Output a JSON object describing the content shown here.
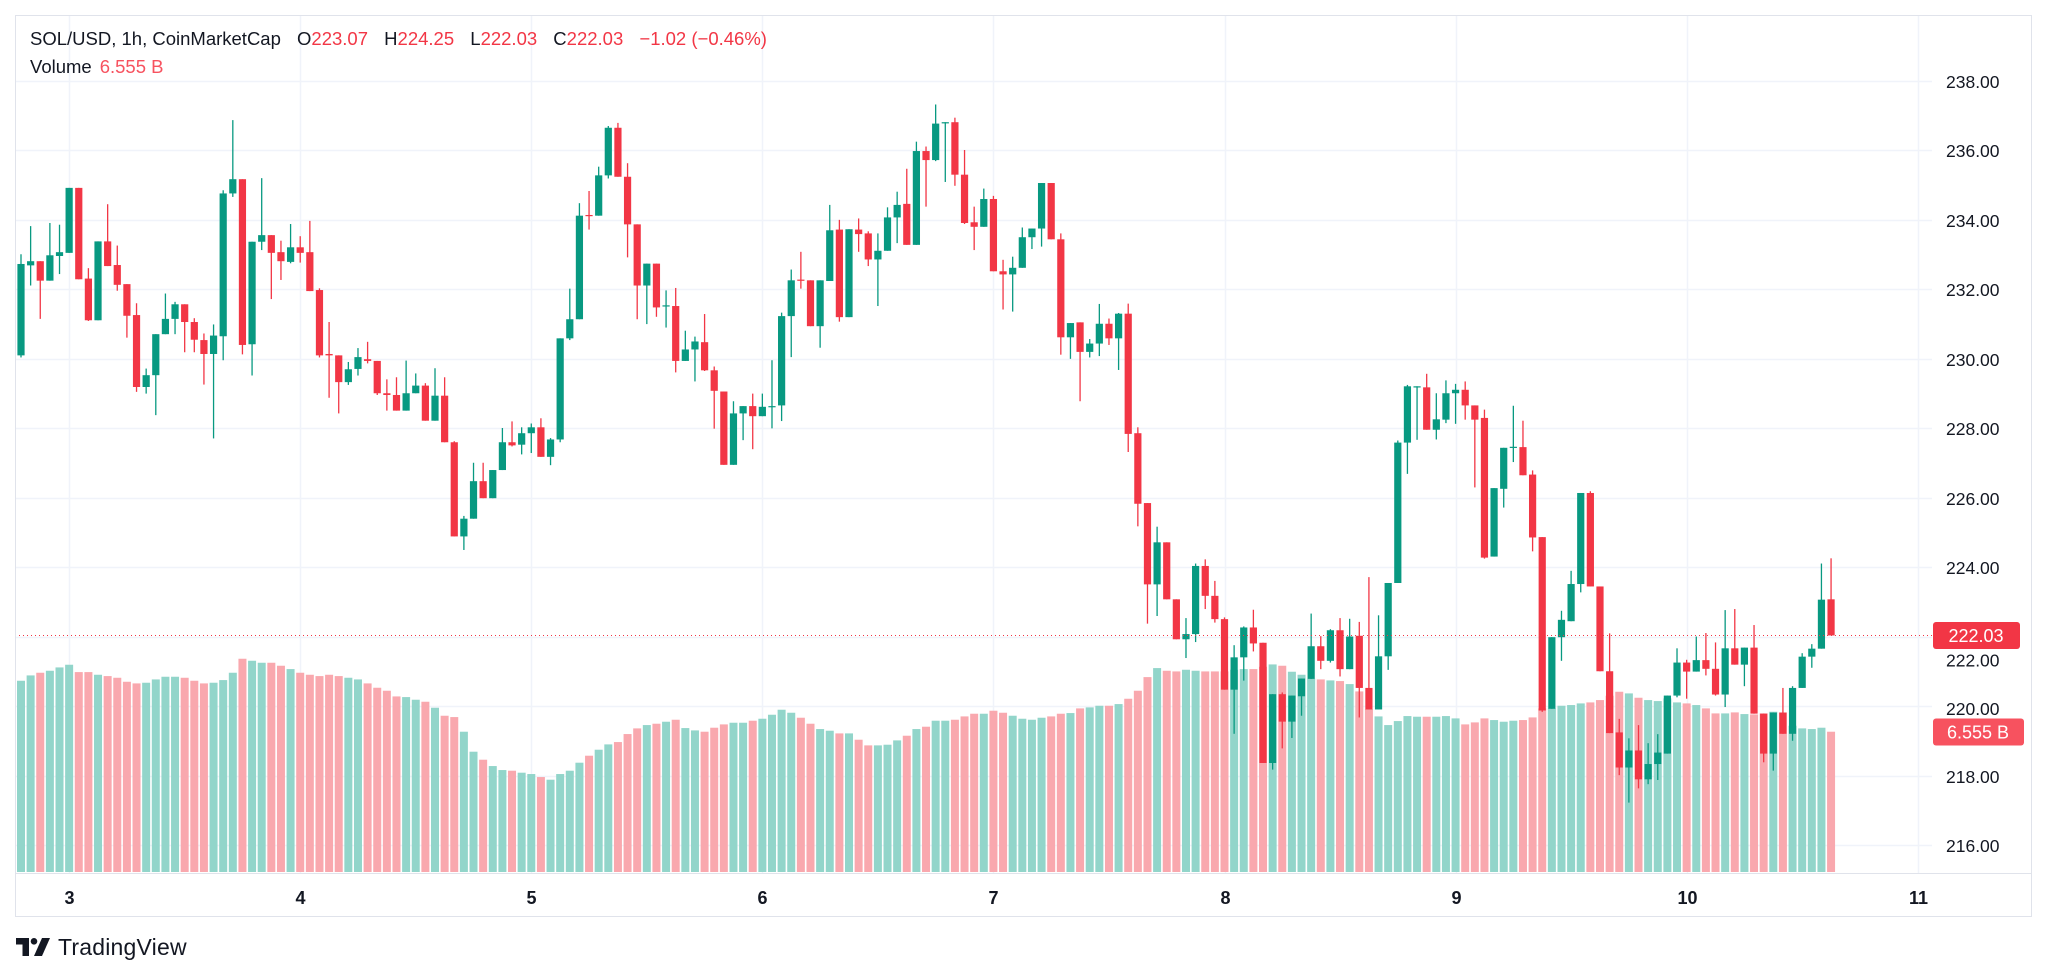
{
  "header": {
    "symbol": "SOL/USD, 1h, CoinMarketCap",
    "ohlc": [
      {
        "k": "O",
        "v": "223.07"
      },
      {
        "k": "H",
        "v": "224.25"
      },
      {
        "k": "L",
        "v": "222.03"
      },
      {
        "k": "C",
        "v": "222.03"
      }
    ],
    "change": "−1.02 (−0.46%)",
    "volume_label": "Volume",
    "volume_value": "6.555 B"
  },
  "price_tag": "222.03",
  "volume_tag": "6.555 B",
  "logo_text": "TradingView",
  "colors": {
    "up": "#089981",
    "down": "#F23645",
    "up_volume": "#92D5CA",
    "down_volume": "#F9A8AE",
    "grid": "#F0F3FA",
    "volume_tag": "#F7525F"
  },
  "chart_data": {
    "type": "candlestick",
    "title": "SOL/USD, 1h, CoinMarketCap",
    "interval": "1h",
    "ylim": [
      215.5,
      238.6
    ],
    "y_ticks": [
      "216.00",
      "218.00",
      "220.00",
      "222.00",
      "224.00",
      "226.00",
      "228.00",
      "230.00",
      "232.00",
      "234.00",
      "236.00",
      "238.00"
    ],
    "x_ticks": [
      {
        "label": "3",
        "index": 5
      },
      {
        "label": "4",
        "index": 29
      },
      {
        "label": "5",
        "index": 53
      },
      {
        "label": "6",
        "index": 77
      },
      {
        "label": "7",
        "index": 101
      },
      {
        "label": "8",
        "index": 125
      },
      {
        "label": "9",
        "index": 149
      },
      {
        "label": "10",
        "index": 173
      },
      {
        "label": "11",
        "index": 197
      }
    ],
    "last_price": 222.03,
    "grid": true,
    "candles_ohlc": [
      [
        230.09,
        233.0,
        230.03,
        232.72
      ],
      [
        232.68,
        233.81,
        232.1,
        232.8
      ],
      [
        232.8,
        232.8,
        231.14,
        232.24
      ],
      [
        232.24,
        233.9,
        232.24,
        232.97
      ],
      [
        232.95,
        233.85,
        232.43,
        233.06
      ],
      [
        233.04,
        234.91,
        233.04,
        234.91
      ],
      [
        234.91,
        234.91,
        232.28,
        232.28
      ],
      [
        232.3,
        232.6,
        231.08,
        231.1
      ],
      [
        231.1,
        233.37,
        231.1,
        233.37
      ],
      [
        233.37,
        234.44,
        232.66,
        232.66
      ],
      [
        232.69,
        233.25,
        231.95,
        232.12
      ],
      [
        232.14,
        232.14,
        230.6,
        231.23
      ],
      [
        231.25,
        231.59,
        229.04,
        229.18
      ],
      [
        229.18,
        229.71,
        228.99,
        229.52
      ],
      [
        229.52,
        230.7,
        228.37,
        230.7
      ],
      [
        230.7,
        231.87,
        230.7,
        231.14
      ],
      [
        231.14,
        231.63,
        230.7,
        231.56
      ],
      [
        231.56,
        231.56,
        230.18,
        231.05
      ],
      [
        231.05,
        231.16,
        230.18,
        230.54
      ],
      [
        230.53,
        230.72,
        229.25,
        230.13
      ],
      [
        230.13,
        230.98,
        227.7,
        230.66
      ],
      [
        230.64,
        234.84,
        229.95,
        234.75
      ],
      [
        234.75,
        236.86,
        234.65,
        235.16
      ],
      [
        235.16,
        235.16,
        230.12,
        230.39
      ],
      [
        230.41,
        233.36,
        229.51,
        233.36
      ],
      [
        233.36,
        235.19,
        233.12,
        233.55
      ],
      [
        233.55,
        233.55,
        231.71,
        233.04
      ],
      [
        233.06,
        233.39,
        232.26,
        232.8
      ],
      [
        232.78,
        233.87,
        232.74,
        233.2
      ],
      [
        233.2,
        233.52,
        232.76,
        233.04
      ],
      [
        233.06,
        233.96,
        231.94,
        231.94
      ],
      [
        231.97,
        232.02,
        230.03,
        230.09
      ],
      [
        230.13,
        231.05,
        228.87,
        230.09
      ],
      [
        230.09,
        230.09,
        228.42,
        229.32
      ],
      [
        229.32,
        229.9,
        229.24,
        229.69
      ],
      [
        229.7,
        230.3,
        229.51,
        230.04
      ],
      [
        229.98,
        230.48,
        229.86,
        229.93
      ],
      [
        229.93,
        229.93,
        228.95,
        229.0
      ],
      [
        229.0,
        229.4,
        228.5,
        228.95
      ],
      [
        228.95,
        229.46,
        228.5,
        228.5
      ],
      [
        228.5,
        229.94,
        228.5,
        229.0
      ],
      [
        229.0,
        229.57,
        229.0,
        229.22
      ],
      [
        229.22,
        229.29,
        228.21,
        228.21
      ],
      [
        228.21,
        229.72,
        228.21,
        228.93
      ],
      [
        228.93,
        229.46,
        227.59,
        227.59
      ],
      [
        227.59,
        227.62,
        224.88,
        224.88
      ],
      [
        224.88,
        225.47,
        224.49,
        225.39
      ],
      [
        225.39,
        227.0,
        225.39,
        226.47
      ],
      [
        226.47,
        227.0,
        225.98,
        225.98
      ],
      [
        225.98,
        226.79,
        225.98,
        226.79
      ],
      [
        226.79,
        228.0,
        226.79,
        227.59
      ],
      [
        227.59,
        228.19,
        227.47,
        227.5
      ],
      [
        227.52,
        228.02,
        227.24,
        227.85
      ],
      [
        227.85,
        228.13,
        227.28,
        228.02
      ],
      [
        228.02,
        228.28,
        227.17,
        227.17
      ],
      [
        227.17,
        227.71,
        226.93,
        227.67
      ],
      [
        227.67,
        230.58,
        227.59,
        230.58
      ],
      [
        230.58,
        232.01,
        230.53,
        231.13
      ],
      [
        231.13,
        234.47,
        231.13,
        234.11
      ],
      [
        234.13,
        234.82,
        233.71,
        234.11
      ],
      [
        234.11,
        235.52,
        234.11,
        235.27
      ],
      [
        235.27,
        236.69,
        235.18,
        236.64
      ],
      [
        236.64,
        236.78,
        235.23,
        235.23
      ],
      [
        235.23,
        235.62,
        232.91,
        233.86
      ],
      [
        233.86,
        233.86,
        231.13,
        232.1
      ],
      [
        232.1,
        232.73,
        230.99,
        232.73
      ],
      [
        232.73,
        232.73,
        231.2,
        231.47
      ],
      [
        231.5,
        231.96,
        230.89,
        231.53
      ],
      [
        231.51,
        232.03,
        229.6,
        229.93
      ],
      [
        229.93,
        230.8,
        229.93,
        230.26
      ],
      [
        230.26,
        230.63,
        229.34,
        230.49
      ],
      [
        230.47,
        231.28,
        229.64,
        229.66
      ],
      [
        229.66,
        229.77,
        227.98,
        229.07
      ],
      [
        229.05,
        229.05,
        226.94,
        226.94
      ],
      [
        226.94,
        228.77,
        226.94,
        228.42
      ],
      [
        228.42,
        228.63,
        227.65,
        228.63
      ],
      [
        228.63,
        228.99,
        227.39,
        228.34
      ],
      [
        228.34,
        228.99,
        228.34,
        228.61
      ],
      [
        228.6,
        229.95,
        227.99,
        228.63
      ],
      [
        228.65,
        231.32,
        228.2,
        231.22
      ],
      [
        231.22,
        232.56,
        230.04,
        232.25
      ],
      [
        232.27,
        233.07,
        232.01,
        232.25
      ],
      [
        232.25,
        232.25,
        230.93,
        230.93
      ],
      [
        230.93,
        232.25,
        230.31,
        232.25
      ],
      [
        232.23,
        234.42,
        232.23,
        233.69
      ],
      [
        233.71,
        233.99,
        231.06,
        231.19
      ],
      [
        231.19,
        233.72,
        231.19,
        233.72
      ],
      [
        233.71,
        234.03,
        233.07,
        233.58
      ],
      [
        233.6,
        233.66,
        232.66,
        232.85
      ],
      [
        232.85,
        233.6,
        231.51,
        233.1
      ],
      [
        233.1,
        234.35,
        233.1,
        234.06
      ],
      [
        234.06,
        234.8,
        233.32,
        234.42
      ],
      [
        234.45,
        235.46,
        233.27,
        233.27
      ],
      [
        233.27,
        236.24,
        233.27,
        235.97
      ],
      [
        235.97,
        236.1,
        234.37,
        235.71
      ],
      [
        235.71,
        237.31,
        235.68,
        236.76
      ],
      [
        236.77,
        236.8,
        235.08,
        236.8
      ],
      [
        236.8,
        236.93,
        234.97,
        235.29
      ],
      [
        235.29,
        236.0,
        233.87,
        233.9
      ],
      [
        233.92,
        234.37,
        233.12,
        233.79
      ],
      [
        233.79,
        234.89,
        233.79,
        234.59
      ],
      [
        234.59,
        234.68,
        232.51,
        232.51
      ],
      [
        232.51,
        232.84,
        231.41,
        232.42
      ],
      [
        232.42,
        232.93,
        231.35,
        232.61
      ],
      [
        232.61,
        233.77,
        232.61,
        233.49
      ],
      [
        233.49,
        233.74,
        233.15,
        233.74
      ],
      [
        233.74,
        235.05,
        233.22,
        235.05
      ],
      [
        235.05,
        235.05,
        233.43,
        233.43
      ],
      [
        233.43,
        233.6,
        230.11,
        230.61
      ],
      [
        230.61,
        231.02,
        229.99,
        231.02
      ],
      [
        231.04,
        231.04,
        228.77,
        230.19
      ],
      [
        230.19,
        230.56,
        230.03,
        230.43
      ],
      [
        230.43,
        231.57,
        230.07,
        231.0
      ],
      [
        231.0,
        231.15,
        230.39,
        230.58
      ],
      [
        230.58,
        231.31,
        229.67,
        231.29
      ],
      [
        231.29,
        231.58,
        227.31,
        227.83
      ],
      [
        227.85,
        228.02,
        225.17,
        225.82
      ],
      [
        225.84,
        225.84,
        222.37,
        223.5
      ],
      [
        223.5,
        225.16,
        222.59,
        224.71
      ],
      [
        224.71,
        224.71,
        223.07,
        223.07
      ],
      [
        223.07,
        223.07,
        221.92,
        221.92
      ],
      [
        221.92,
        222.53,
        221.38,
        222.07
      ],
      [
        222.07,
        224.1,
        221.84,
        224.03
      ],
      [
        224.03,
        224.22,
        222.79,
        223.17
      ],
      [
        223.17,
        223.6,
        222.4,
        222.5
      ],
      [
        222.5,
        222.55,
        220.47,
        220.47
      ],
      [
        220.47,
        221.75,
        219.2,
        221.4
      ],
      [
        221.4,
        222.29,
        220.73,
        222.26
      ],
      [
        222.26,
        222.77,
        221.57,
        221.8
      ],
      [
        221.82,
        221.82,
        218.36,
        218.36
      ],
      [
        218.36,
        220.34,
        218.17,
        220.34
      ],
      [
        220.34,
        220.39,
        218.78,
        219.55
      ],
      [
        219.55,
        220.3,
        219.08,
        220.3
      ],
      [
        220.28,
        220.79,
        219.72,
        220.79
      ],
      [
        220.78,
        222.66,
        220.78,
        221.72
      ],
      [
        221.72,
        222.01,
        221.06,
        221.3
      ],
      [
        221.3,
        222.21,
        221.25,
        222.18
      ],
      [
        222.18,
        222.53,
        220.85,
        221.06
      ],
      [
        221.06,
        222.51,
        221.06,
        222.0
      ],
      [
        222.02,
        222.42,
        219.67,
        220.52
      ],
      [
        220.52,
        223.71,
        219.9,
        219.9
      ],
      [
        219.9,
        222.61,
        219.9,
        221.43
      ],
      [
        221.43,
        223.54,
        221.04,
        223.54
      ],
      [
        223.54,
        227.64,
        223.54,
        227.58
      ],
      [
        227.58,
        229.24,
        226.68,
        229.2
      ],
      [
        229.18,
        229.2,
        227.66,
        229.2
      ],
      [
        229.17,
        229.56,
        227.95,
        227.95
      ],
      [
        227.95,
        229.0,
        227.67,
        228.25
      ],
      [
        228.24,
        229.37,
        228.14,
        229.0
      ],
      [
        229.0,
        229.27,
        228.12,
        229.1
      ],
      [
        229.1,
        229.34,
        228.24,
        228.65
      ],
      [
        228.65,
        228.65,
        226.29,
        228.24
      ],
      [
        228.29,
        228.53,
        224.24,
        224.27
      ],
      [
        224.3,
        226.27,
        224.3,
        226.27
      ],
      [
        226.25,
        227.43,
        225.71,
        227.43
      ],
      [
        227.44,
        228.64,
        227.02,
        227.46
      ],
      [
        227.45,
        228.21,
        226.64,
        226.64
      ],
      [
        226.66,
        226.78,
        224.45,
        224.85
      ],
      [
        224.86,
        224.86,
        219.83,
        219.87
      ],
      [
        219.92,
        221.98,
        219.92,
        221.98
      ],
      [
        221.98,
        222.74,
        221.3,
        222.48
      ],
      [
        222.44,
        223.89,
        222.44,
        223.51
      ],
      [
        223.51,
        226.13,
        223.27,
        226.13
      ],
      [
        226.13,
        226.18,
        223.44,
        223.44
      ],
      [
        223.44,
        223.44,
        221.0,
        221.0
      ],
      [
        221.0,
        222.09,
        219.22,
        219.22
      ],
      [
        219.24,
        219.63,
        218.01,
        218.23
      ],
      [
        218.23,
        219.07,
        217.22,
        218.72
      ],
      [
        218.72,
        219.45,
        217.63,
        217.89
      ],
      [
        217.89,
        218.93,
        217.75,
        218.33
      ],
      [
        218.33,
        219.19,
        217.87,
        218.66
      ],
      [
        218.63,
        220.3,
        218.63,
        220.3
      ],
      [
        220.3,
        221.66,
        220.25,
        221.25
      ],
      [
        221.25,
        221.33,
        220.21,
        220.99
      ],
      [
        220.99,
        222.0,
        220.99,
        221.32
      ],
      [
        221.32,
        222.1,
        220.88,
        221.07
      ],
      [
        221.07,
        221.83,
        220.3,
        220.33
      ],
      [
        220.33,
        222.76,
        219.97,
        221.66
      ],
      [
        221.66,
        222.79,
        221.19,
        221.19
      ],
      [
        221.19,
        221.68,
        220.57,
        221.68
      ],
      [
        221.68,
        222.33,
        219.78,
        219.78
      ],
      [
        219.78,
        219.78,
        218.38,
        218.63
      ],
      [
        218.63,
        219.81,
        218.14,
        219.81
      ],
      [
        219.81,
        220.52,
        219.2,
        219.2
      ],
      [
        219.2,
        220.57,
        219.0,
        220.52
      ],
      [
        220.52,
        221.52,
        220.52,
        221.42
      ],
      [
        221.42,
        221.78,
        221.1,
        221.65
      ],
      [
        221.65,
        224.1,
        221.65,
        223.06
      ],
      [
        223.07,
        224.25,
        222.03,
        222.03
      ]
    ],
    "volume_billions": [
      8.937,
      9.186,
      9.311,
      9.404,
      9.56,
      9.685,
      9.342,
      9.342,
      9.217,
      9.155,
      9.077,
      8.89,
      8.813,
      8.844,
      8.999,
      9.124,
      9.124,
      9.077,
      8.937,
      8.813,
      8.844,
      8.968,
      9.311,
      9.965,
      9.871,
      9.778,
      9.778,
      9.638,
      9.482,
      9.311,
      9.217,
      9.155,
      9.217,
      9.155,
      9.077,
      8.999,
      8.813,
      8.61,
      8.47,
      8.205,
      8.174,
      8.05,
      7.956,
      7.676,
      7.302,
      7.24,
      6.555,
      5.621,
      5.247,
      4.951,
      4.764,
      4.733,
      4.64,
      4.578,
      4.437,
      4.313,
      4.578,
      4.733,
      5.107,
      5.434,
      5.714,
      5.963,
      6.072,
      6.446,
      6.711,
      6.866,
      6.929,
      7.022,
      7.115,
      6.726,
      6.617,
      6.555,
      6.742,
      6.898,
      6.975,
      6.975,
      7.069,
      7.162,
      7.349,
      7.583,
      7.442,
      7.209,
      6.929,
      6.68,
      6.602,
      6.477,
      6.477,
      6.181,
      5.917,
      5.917,
      5.948,
      6.15,
      6.368,
      6.68,
      6.789,
      7.069,
      7.069,
      7.115,
      7.271,
      7.396,
      7.396,
      7.536,
      7.442,
      7.302,
      7.162,
      7.115,
      7.209,
      7.271,
      7.396,
      7.427,
      7.645,
      7.692,
      7.769,
      7.769,
      7.847,
      8.096,
      8.47,
      9.108,
      9.529,
      9.404,
      9.373,
      9.451,
      9.404,
      9.373,
      9.373,
      9.373,
      9.451,
      9.482,
      9.482,
      9.591,
      9.7,
      9.638,
      9.358,
      9.217,
      9.031,
      8.999,
      8.953,
      8.922,
      8.781,
      8.439,
      7.614,
      7.271,
      6.866,
      7.053,
      7.287,
      7.256,
      7.256,
      7.256,
      7.287,
      7.178,
      6.898,
      6.991,
      7.178,
      7.1,
      7.022,
      7.069,
      7.1,
      7.224,
      7.645,
      7.645,
      7.769,
      7.801,
      7.878,
      7.925,
      8.034,
      8.237,
      8.423,
      8.346,
      8.143,
      8.034,
      7.987,
      8.112,
      7.925,
      7.878,
      7.801,
      7.645,
      7.411,
      7.411,
      7.458,
      7.38,
      7.365,
      7.411,
      7.489,
      7.458,
      6.835,
      6.711,
      6.68,
      6.742,
      6.555
    ]
  }
}
